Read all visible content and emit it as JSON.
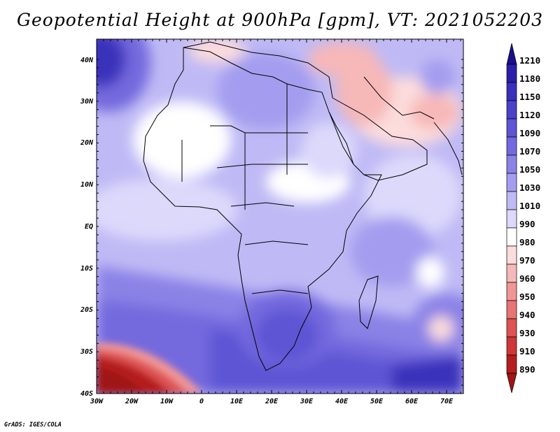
{
  "title": "Geopotential Height at 900hPa [gpm], VT: 2021052203",
  "credit": "GrADS: IGES/COLA",
  "lat_labels": [
    "40N",
    "30N",
    "20N",
    "10N",
    "EQ",
    "10S",
    "20S",
    "30S",
    "40S"
  ],
  "lon_labels": [
    "30W",
    "20W",
    "10W",
    "0",
    "10E",
    "20E",
    "30E",
    "40E",
    "50E",
    "60E",
    "70E"
  ],
  "colorbar": {
    "levels": [
      "1210",
      "1180",
      "1150",
      "1120",
      "1090",
      "1070",
      "1050",
      "1030",
      "1010",
      "990",
      "980",
      "970",
      "960",
      "950",
      "940",
      "930",
      "910",
      "890"
    ],
    "colors": [
      "#1a0f8c",
      "#2a1fa8",
      "#3a30bb",
      "#4a42c9",
      "#5d55d4",
      "#7469de",
      "#8b82e6",
      "#a49def",
      "#bfbaf5",
      "#dcd9fb",
      "#ffffff",
      "#fcdcdc",
      "#f7b8b8",
      "#f19696",
      "#e97474",
      "#de5353",
      "#cf3636",
      "#b51e1e",
      "#a01414"
    ]
  },
  "field_colors": {
    "deep_blue": "#3a30bb",
    "mid_blue": "#7469de",
    "light_blue": "#a49def",
    "pale_blue": "#bfbaf5",
    "very_pale": "#dcd9fb",
    "white": "#ffffff",
    "pink": "#f7b8b8",
    "red": "#e97474",
    "deep_red": "#a01414"
  }
}
